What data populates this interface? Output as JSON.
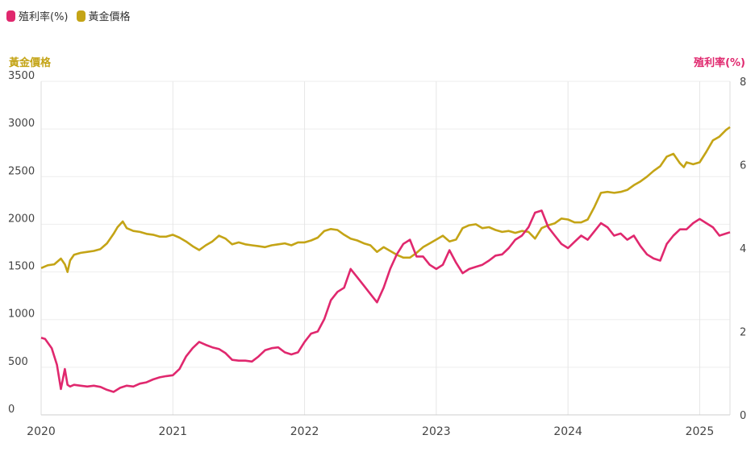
{
  "legend": [
    {
      "label": "殖利率(%)",
      "color": "#e0286e"
    },
    {
      "label": "黃金價格",
      "color": "#c4a416"
    }
  ],
  "axes": {
    "left_title": "黃金價格",
    "right_title": "殖利率(%)"
  },
  "chart_data": {
    "type": "line",
    "x_ticks": [
      "2020",
      "2021",
      "2022",
      "2023",
      "2024",
      "2025"
    ],
    "y_left": {
      "ticks": [
        0,
        500,
        1000,
        1500,
        2000,
        2500,
        3000,
        3500
      ],
      "lim": [
        0,
        3500
      ]
    },
    "y_right": {
      "ticks": [
        0,
        2,
        4,
        6,
        8
      ],
      "lim": [
        0,
        8
      ]
    },
    "xlim": [
      2020.0,
      2025.23
    ],
    "series": [
      {
        "name": "黃金價格",
        "axis": "left",
        "color": "#c4a416",
        "x": [
          2020.0,
          2020.05,
          2020.1,
          2020.15,
          2020.18,
          2020.2,
          2020.22,
          2020.25,
          2020.3,
          2020.35,
          2020.4,
          2020.45,
          2020.5,
          2020.55,
          2020.58,
          2020.62,
          2020.65,
          2020.7,
          2020.75,
          2020.8,
          2020.85,
          2020.9,
          2020.95,
          2021.0,
          2021.05,
          2021.1,
          2021.15,
          2021.2,
          2021.25,
          2021.3,
          2021.35,
          2021.4,
          2021.45,
          2021.5,
          2021.55,
          2021.6,
          2021.65,
          2021.7,
          2021.75,
          2021.8,
          2021.85,
          2021.9,
          2021.95,
          2022.0,
          2022.05,
          2022.1,
          2022.15,
          2022.2,
          2022.25,
          2022.3,
          2022.35,
          2022.4,
          2022.45,
          2022.5,
          2022.55,
          2022.6,
          2022.65,
          2022.7,
          2022.75,
          2022.8,
          2022.85,
          2022.9,
          2022.95,
          2023.0,
          2023.05,
          2023.1,
          2023.15,
          2023.2,
          2023.25,
          2023.3,
          2023.35,
          2023.4,
          2023.45,
          2023.5,
          2023.55,
          2023.6,
          2023.65,
          2023.7,
          2023.75,
          2023.8,
          2023.85,
          2023.9,
          2023.95,
          2024.0,
          2024.05,
          2024.1,
          2024.15,
          2024.2,
          2024.25,
          2024.3,
          2024.35,
          2024.4,
          2024.45,
          2024.5,
          2024.55,
          2024.6,
          2024.65,
          2024.7,
          2024.75,
          2024.8,
          2024.85,
          2024.88,
          2024.9,
          2024.95,
          2025.0,
          2025.05,
          2025.1,
          2025.15,
          2025.2,
          2025.23
        ],
        "y": [
          1540,
          1570,
          1580,
          1640,
          1580,
          1500,
          1620,
          1680,
          1700,
          1710,
          1720,
          1740,
          1800,
          1900,
          1970,
          2030,
          1960,
          1930,
          1920,
          1900,
          1890,
          1870,
          1870,
          1890,
          1860,
          1820,
          1770,
          1730,
          1780,
          1820,
          1880,
          1850,
          1790,
          1810,
          1790,
          1780,
          1770,
          1760,
          1780,
          1790,
          1800,
          1780,
          1810,
          1810,
          1830,
          1860,
          1930,
          1950,
          1940,
          1890,
          1850,
          1830,
          1800,
          1780,
          1710,
          1760,
          1720,
          1680,
          1650,
          1650,
          1700,
          1760,
          1800,
          1840,
          1880,
          1820,
          1840,
          1960,
          1990,
          2000,
          1960,
          1970,
          1940,
          1920,
          1930,
          1910,
          1930,
          1920,
          1850,
          1960,
          1990,
          2010,
          2060,
          2050,
          2020,
          2020,
          2050,
          2180,
          2330,
          2340,
          2330,
          2340,
          2360,
          2410,
          2450,
          2500,
          2560,
          2610,
          2710,
          2740,
          2640,
          2600,
          2650,
          2630,
          2650,
          2760,
          2880,
          2920,
          2990,
          3020
        ]
      },
      {
        "name": "殖利率(%)",
        "axis": "right",
        "color": "#e0286e",
        "x": [
          2020.0,
          2020.03,
          2020.08,
          2020.12,
          2020.15,
          2020.18,
          2020.2,
          2020.22,
          2020.25,
          2020.3,
          2020.35,
          2020.4,
          2020.45,
          2020.5,
          2020.55,
          2020.6,
          2020.65,
          2020.7,
          2020.75,
          2020.8,
          2020.85,
          2020.9,
          2020.95,
          2021.0,
          2021.05,
          2021.1,
          2021.15,
          2021.2,
          2021.25,
          2021.3,
          2021.35,
          2021.4,
          2021.45,
          2021.5,
          2021.55,
          2021.6,
          2021.65,
          2021.7,
          2021.75,
          2021.8,
          2021.85,
          2021.9,
          2021.95,
          2022.0,
          2022.05,
          2022.1,
          2022.15,
          2022.2,
          2022.25,
          2022.3,
          2022.35,
          2022.4,
          2022.45,
          2022.5,
          2022.55,
          2022.6,
          2022.65,
          2022.7,
          2022.75,
          2022.8,
          2022.85,
          2022.9,
          2022.95,
          2023.0,
          2023.05,
          2023.1,
          2023.15,
          2023.2,
          2023.25,
          2023.3,
          2023.35,
          2023.4,
          2023.45,
          2023.5,
          2023.55,
          2023.6,
          2023.65,
          2023.7,
          2023.75,
          2023.8,
          2023.85,
          2023.9,
          2023.95,
          2024.0,
          2024.05,
          2024.1,
          2024.15,
          2024.2,
          2024.25,
          2024.3,
          2024.35,
          2024.4,
          2024.45,
          2024.5,
          2024.55,
          2024.6,
          2024.65,
          2024.7,
          2024.75,
          2024.8,
          2024.85,
          2024.9,
          2024.95,
          2025.0,
          2025.05,
          2025.1,
          2025.15,
          2025.2,
          2025.23
        ],
        "y": [
          1.85,
          1.82,
          1.6,
          1.2,
          0.62,
          1.1,
          0.72,
          0.68,
          0.72,
          0.7,
          0.68,
          0.7,
          0.67,
          0.6,
          0.55,
          0.65,
          0.7,
          0.68,
          0.75,
          0.78,
          0.85,
          0.9,
          0.93,
          0.95,
          1.1,
          1.4,
          1.6,
          1.75,
          1.68,
          1.62,
          1.58,
          1.48,
          1.32,
          1.3,
          1.3,
          1.28,
          1.4,
          1.55,
          1.6,
          1.62,
          1.5,
          1.45,
          1.5,
          1.75,
          1.95,
          2.0,
          2.3,
          2.75,
          2.95,
          3.05,
          3.5,
          3.3,
          3.1,
          2.9,
          2.7,
          3.05,
          3.5,
          3.85,
          4.1,
          4.2,
          3.8,
          3.8,
          3.6,
          3.5,
          3.6,
          3.95,
          3.65,
          3.4,
          3.5,
          3.55,
          3.6,
          3.7,
          3.82,
          3.85,
          4.0,
          4.2,
          4.3,
          4.5,
          4.85,
          4.9,
          4.5,
          4.3,
          4.1,
          4.0,
          4.15,
          4.3,
          4.2,
          4.4,
          4.6,
          4.5,
          4.3,
          4.35,
          4.2,
          4.3,
          4.05,
          3.85,
          3.75,
          3.7,
          4.1,
          4.3,
          4.45,
          4.45,
          4.6,
          4.7,
          4.6,
          4.5,
          4.3,
          4.35,
          4.38
        ]
      }
    ]
  }
}
